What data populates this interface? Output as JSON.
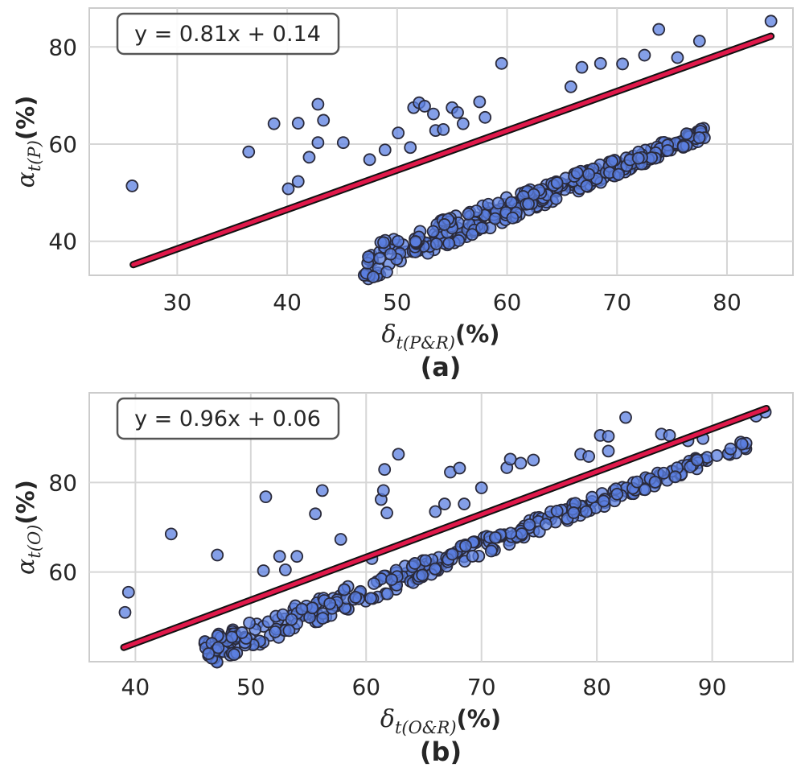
{
  "chart_data": [
    {
      "type": "scatter",
      "panel_label": "(a)",
      "xlabel": {
        "symbol": "δ",
        "subscript": "t(P&R)",
        "unit": "(%)"
      },
      "ylabel": {
        "symbol": "α",
        "subscript": "t(P)",
        "unit": "(%)"
      },
      "xlim": [
        22,
        86
      ],
      "ylim": [
        33,
        88
      ],
      "xticks": [
        30,
        40,
        50,
        60,
        70,
        80
      ],
      "yticks": [
        40,
        60,
        80
      ],
      "grid": true,
      "fit": {
        "slope": 0.81,
        "intercept": 0.14,
        "equation": "y = 0.81x + 0.14",
        "x_range": [
          26,
          84
        ],
        "y_range": [
          35.2,
          82.2
        ]
      },
      "colors": {
        "points": "#5b7fe0",
        "point_edge": "#2a2a3a",
        "fit_line": "#e0184a",
        "fit_edge": "#111111"
      },
      "outliers": [
        [
          25.9,
          51.4
        ],
        [
          36.5,
          58.4
        ],
        [
          38.8,
          64.2
        ],
        [
          40.1,
          50.8
        ],
        [
          41.0,
          64.3
        ],
        [
          41.0,
          52.3
        ],
        [
          42.0,
          57.3
        ],
        [
          42.8,
          60.3
        ],
        [
          42.8,
          68.2
        ],
        [
          43.3,
          64.9
        ],
        [
          45.1,
          60.3
        ],
        [
          47.5,
          56.8
        ],
        [
          48.9,
          58.8
        ],
        [
          50.1,
          62.3
        ],
        [
          51.2,
          59.3
        ],
        [
          51.5,
          67.5
        ],
        [
          52.0,
          68.5
        ],
        [
          52.5,
          67.8
        ],
        [
          53.3,
          66.2
        ],
        [
          53.5,
          62.8
        ],
        [
          54.2,
          63.0
        ],
        [
          55.0,
          67.5
        ],
        [
          55.5,
          66.5
        ],
        [
          56.0,
          64.2
        ],
        [
          57.5,
          68.7
        ],
        [
          58.0,
          65.5
        ],
        [
          59.5,
          76.6
        ],
        [
          65.8,
          71.8
        ],
        [
          66.8,
          75.8
        ],
        [
          68.5,
          76.6
        ],
        [
          70.5,
          76.5
        ],
        [
          72.5,
          78.3
        ],
        [
          73.8,
          83.6
        ],
        [
          75.5,
          77.8
        ],
        [
          77.5,
          81.2
        ],
        [
          84.0,
          85.3
        ]
      ],
      "cluster": {
        "x_range": [
          47,
          78
        ],
        "y_offsets": [
          -6.5,
          0.5
        ],
        "count": 330,
        "seed": 11
      }
    },
    {
      "type": "scatter",
      "panel_label": "(b)",
      "xlabel": {
        "symbol": "δ",
        "subscript": "t(O&R)",
        "unit": "(%)"
      },
      "ylabel": {
        "symbol": "α",
        "subscript": "t(O)",
        "unit": "(%)"
      },
      "xlim": [
        36,
        97
      ],
      "ylim": [
        40,
        100
      ],
      "xticks": [
        40,
        50,
        60,
        70,
        80,
        90
      ],
      "yticks": [
        60,
        80
      ],
      "grid": true,
      "fit": {
        "slope": 0.96,
        "intercept": 0.06,
        "equation": "y = 0.96x + 0.06",
        "x_range": [
          39,
          94.7
        ],
        "y_range": [
          43.2,
          96.5
        ]
      },
      "colors": {
        "points": "#5b7fe0",
        "point_edge": "#2a2a3a",
        "fit_line": "#e0184a",
        "fit_edge": "#111111"
      },
      "outliers": [
        [
          39.1,
          51.0
        ],
        [
          39.4,
          55.5
        ],
        [
          43.1,
          68.5
        ],
        [
          47.1,
          63.8
        ],
        [
          51.1,
          60.3
        ],
        [
          51.3,
          76.8
        ],
        [
          52.5,
          63.5
        ],
        [
          53.0,
          60.5
        ],
        [
          54.0,
          63.5
        ],
        [
          55.6,
          73.0
        ],
        [
          56.2,
          78.2
        ],
        [
          57.8,
          67.3
        ],
        [
          60.5,
          63.0
        ],
        [
          61.3,
          76.2
        ],
        [
          61.5,
          78.2
        ],
        [
          61.6,
          82.9
        ],
        [
          61.8,
          73.2
        ],
        [
          62.8,
          86.3
        ],
        [
          66.0,
          73.5
        ],
        [
          66.8,
          75.2
        ],
        [
          67.3,
          82.3
        ],
        [
          68.1,
          83.2
        ],
        [
          68.5,
          75.2
        ],
        [
          70.0,
          78.8
        ],
        [
          72.2,
          83.3
        ],
        [
          72.5,
          85.2
        ],
        [
          73.4,
          84.3
        ],
        [
          74.5,
          85.0
        ],
        [
          78.6,
          86.3
        ],
        [
          79.3,
          85.8
        ],
        [
          80.3,
          90.5
        ],
        [
          81.0,
          90.3
        ],
        [
          81.0,
          87.0
        ],
        [
          82.5,
          94.5
        ],
        [
          85.6,
          90.8
        ],
        [
          86.3,
          90.5
        ],
        [
          87.9,
          89.3
        ],
        [
          89.2,
          89.8
        ],
        [
          93.8,
          94.8
        ],
        [
          94.6,
          95.7
        ]
      ],
      "cluster": {
        "x_range": [
          46,
          93
        ],
        "y_offsets": [
          -5.5,
          0.8
        ],
        "count": 330,
        "seed": 23
      }
    }
  ]
}
